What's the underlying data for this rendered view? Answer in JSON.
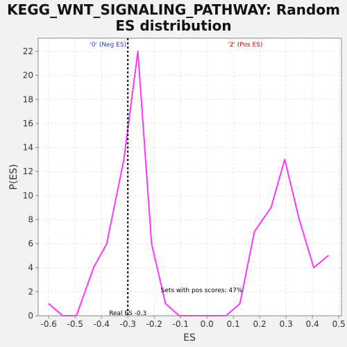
{
  "chart_data": {
    "type": "line",
    "title_line1": "KEGG_WNT_SIGNALING_PATHWAY: Random",
    "title_line2": "ES distribution",
    "xlabel": "ES",
    "ylabel": "P(ES)",
    "xlim": [
      -0.64,
      0.51
    ],
    "ylim": [
      0,
      23.1
    ],
    "x_ticks": [
      -0.6,
      -0.5,
      -0.4,
      -0.3,
      -0.2,
      -0.1,
      0.0,
      0.1,
      0.2,
      0.3,
      0.4,
      0.5
    ],
    "x_tick_labels": [
      "-0.6",
      "-0.5",
      "-0.4",
      "-0.3",
      "-0.2",
      "-0.1",
      "0.0",
      "0.1",
      "0.2",
      "0.3",
      "0.4",
      "0.5"
    ],
    "y_ticks": [
      0,
      2,
      4,
      6,
      8,
      10,
      12,
      14,
      16,
      18,
      20,
      22
    ],
    "y_tick_labels": [
      "0",
      "2",
      "4",
      "6",
      "8",
      "10",
      "12",
      "14",
      "16",
      "18",
      "20",
      "22"
    ],
    "grid": true,
    "series": [
      {
        "color": "#ff33ff",
        "x": [
          -0.6,
          -0.547,
          -0.495,
          -0.43,
          -0.38,
          -0.315,
          -0.262,
          -0.21,
          -0.157,
          -0.105,
          -0.052,
          0.0,
          0.072,
          0.125,
          0.18,
          0.243,
          0.295,
          0.35,
          0.405,
          0.46
        ],
        "y": [
          1,
          0,
          0,
          4,
          6,
          13,
          22,
          6,
          1,
          0,
          0,
          0,
          0,
          1,
          7,
          9,
          13,
          8,
          4,
          5
        ]
      }
    ],
    "real_es": -0.3,
    "real_es_label": "Real ES -0.3",
    "neg_label": "'0' (Neg ES)",
    "pos_label": "'2' (Pos ES)",
    "pos_scores_label": "Sets with pos scores: 47%",
    "colors": {
      "line": "#ff33ff",
      "neg": "#3333cc",
      "pos": "#cc0000"
    }
  }
}
